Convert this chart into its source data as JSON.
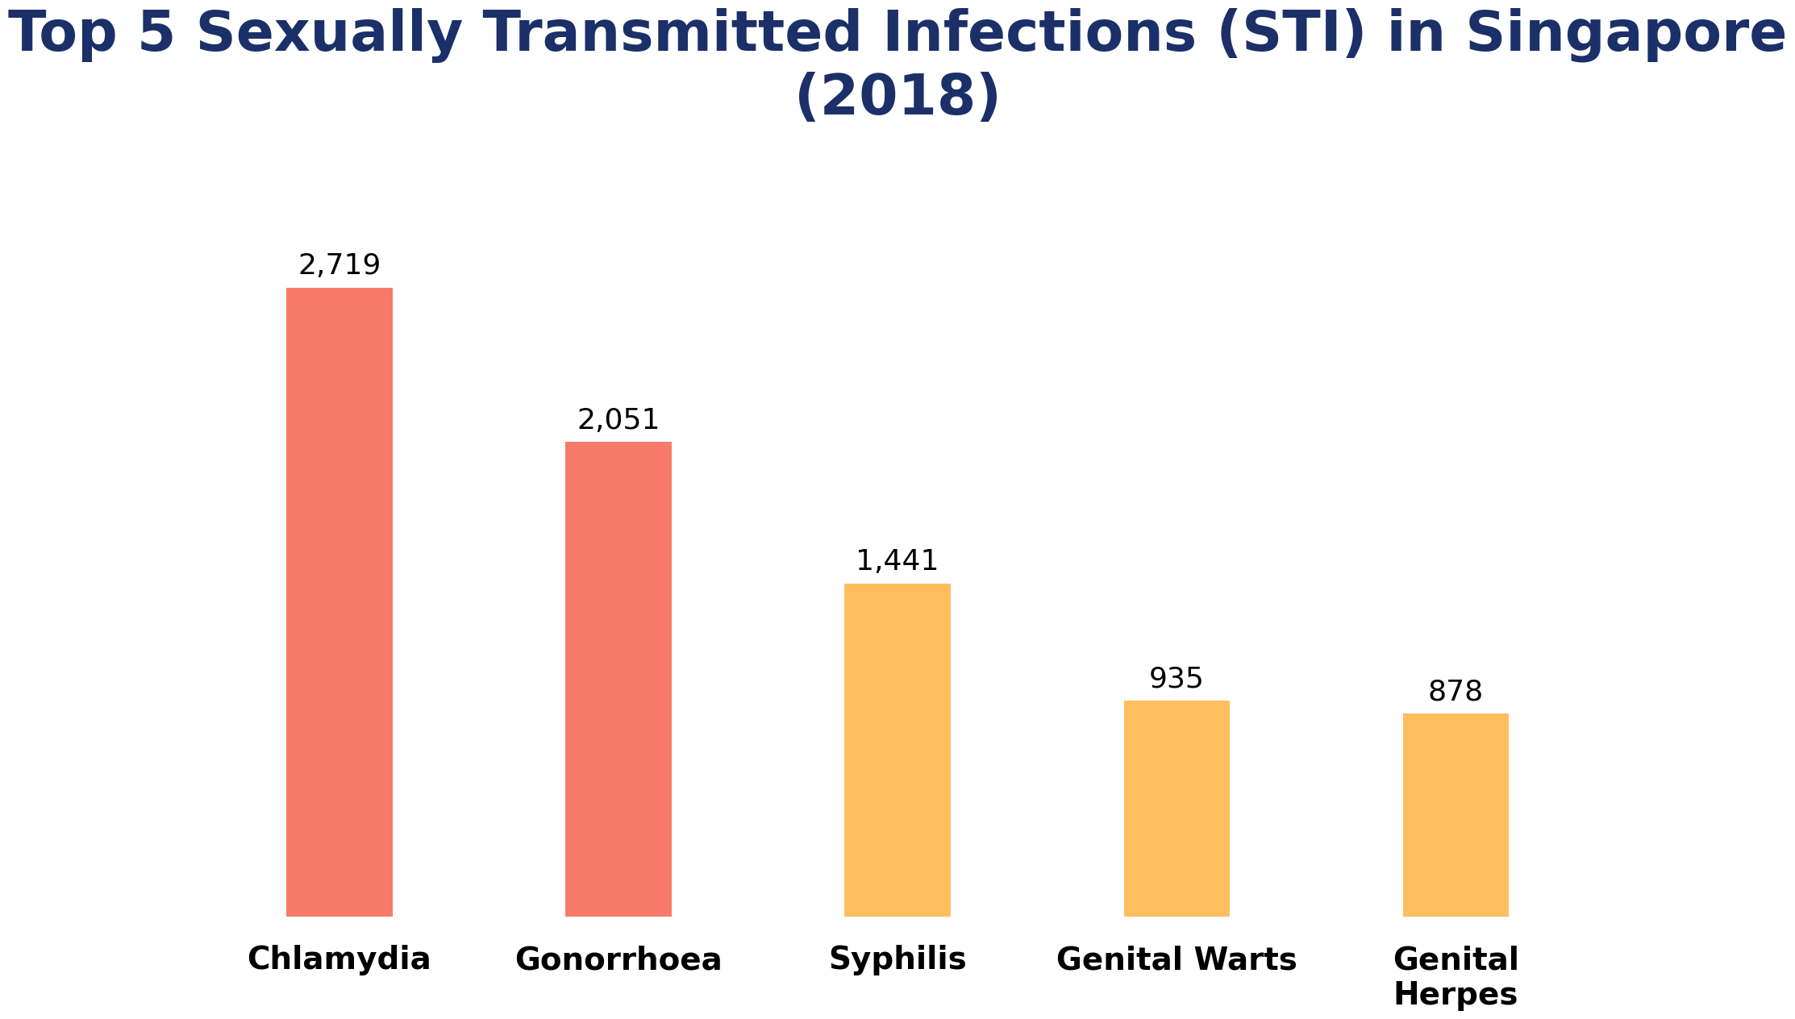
{
  "title": "Top 5 Sexually Transmitted Infections (STI) in Singapore\n(2018)",
  "categories": [
    "Chlamydia",
    "Gonorrhoea",
    "Syphilis",
    "Genital Warts",
    "Genital\nHerpes"
  ],
  "values": [
    2719,
    2051,
    1441,
    935,
    878
  ],
  "bar_colors": [
    "#F87B6A",
    "#F87B6A",
    "#FFBE5E",
    "#FFBE5E",
    "#FFBE5E"
  ],
  "value_labels": [
    "2,719",
    "2,051",
    "1,441",
    "935",
    "878"
  ],
  "title_color": "#1B3068",
  "label_color": "#000000",
  "background_color": "#FFFFFF",
  "title_fontsize": 50,
  "label_fontsize": 28,
  "value_fontsize": 26,
  "ylim": [
    0,
    3300
  ],
  "bar_width": 0.38,
  "xlim": [
    -0.6,
    4.6
  ]
}
